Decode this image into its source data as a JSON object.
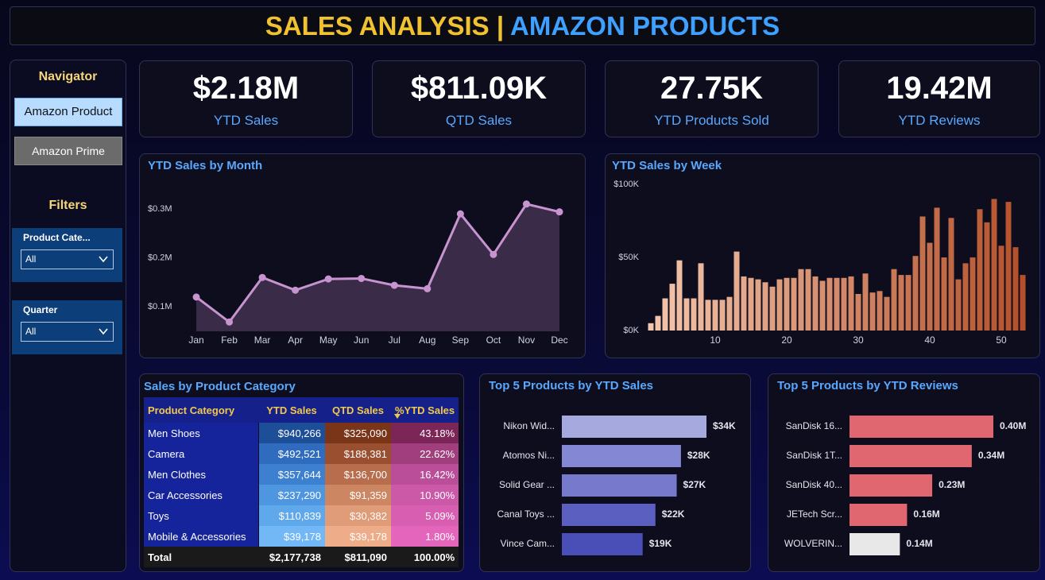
{
  "header": {
    "title_left": "SALES ANALYSIS",
    "separator": "|",
    "title_right": "AMAZON PRODUCTS"
  },
  "navigator": {
    "title": "Navigator",
    "buttons": [
      "Amazon Product",
      "Amazon Prime"
    ],
    "filters_title": "Filters",
    "filters": [
      {
        "label": "Product Cate...",
        "value": "All"
      },
      {
        "label": "Quarter",
        "value": "All"
      }
    ]
  },
  "kpis": [
    {
      "value": "$2.18M",
      "label": "YTD Sales"
    },
    {
      "value": "$811.09K",
      "label": "QTD Sales"
    },
    {
      "value": "27.75K",
      "label": "YTD Products Sold"
    },
    {
      "value": "19.42M",
      "label": "YTD Reviews"
    }
  ],
  "table": {
    "title": "Sales by Product Category",
    "columns": [
      "Product Category",
      "YTD Sales",
      "QTD Sales",
      "%YTD Sales"
    ],
    "rows": [
      [
        "Men Shoes",
        "$940,266",
        "$325,090",
        "43.18%"
      ],
      [
        "Camera",
        "$492,521",
        "$188,381",
        "22.62%"
      ],
      [
        "Men Clothes",
        "$357,644",
        "$136,700",
        "16.42%"
      ],
      [
        "Car Accessories",
        "$237,290",
        "$91,359",
        "10.90%"
      ],
      [
        "Toys",
        "$110,839",
        "$30,382",
        "5.09%"
      ],
      [
        "Mobile & Accessories",
        "$39,178",
        "$39,178",
        "1.80%"
      ]
    ],
    "total": [
      "Total",
      "$2,177,738",
      "$811,090",
      "100.00%"
    ]
  },
  "chart_data": [
    {
      "type": "area",
      "title": "YTD Sales by Month",
      "color": "#c894d0",
      "fill": "#3a2c48",
      "categories": [
        "Jan",
        "Feb",
        "Mar",
        "Apr",
        "May",
        "Jun",
        "Jul",
        "Aug",
        "Sep",
        "Oct",
        "Nov",
        "Dec"
      ],
      "values": [
        0.12,
        0.069,
        0.16,
        0.134,
        0.157,
        0.158,
        0.144,
        0.137,
        0.29,
        0.207,
        0.31,
        0.294
      ],
      "ylim": [
        0.05,
        0.36
      ],
      "yticks": [
        {
          "value": 0.1,
          "label": "$0.1M"
        },
        {
          "value": 0.2,
          "label": "$0.2M"
        },
        {
          "value": 0.3,
          "label": "$0.3M"
        }
      ]
    },
    {
      "type": "bar",
      "title": "YTD Sales by Week",
      "color_range": [
        "#f4c6ac",
        "#b4502a"
      ],
      "x": [
        1,
        2,
        3,
        4,
        5,
        6,
        7,
        8,
        9,
        10,
        11,
        12,
        13,
        14,
        15,
        16,
        17,
        18,
        19,
        20,
        21,
        22,
        23,
        24,
        25,
        26,
        27,
        28,
        29,
        30,
        31,
        32,
        33,
        34,
        35,
        36,
        37,
        38,
        39,
        40,
        41,
        42,
        43,
        44,
        45,
        46,
        47,
        48,
        49,
        50,
        51,
        52,
        53
      ],
      "values": [
        5,
        10,
        22,
        32,
        48,
        22,
        22,
        46,
        21,
        21,
        21,
        23,
        54,
        37,
        36,
        35,
        33,
        30,
        35,
        36,
        36,
        42,
        42,
        37,
        34,
        36,
        36,
        36,
        37,
        25,
        39,
        26,
        27,
        23,
        42,
        38,
        38,
        51,
        78,
        60,
        84,
        50,
        77,
        35,
        46,
        50,
        83,
        74,
        90,
        58,
        88,
        57,
        38
      ],
      "xlim": [
        0,
        54
      ],
      "xticks": [
        10,
        20,
        30,
        40,
        50
      ],
      "ylim": [
        0,
        100
      ],
      "yticks": [
        {
          "value": 0,
          "label": "$0K"
        },
        {
          "value": 50,
          "label": "$50K"
        },
        {
          "value": 100,
          "label": "$100K"
        }
      ]
    },
    {
      "type": "hbar",
      "title": "Top 5 Products by YTD Sales",
      "categories": [
        "Nikon Wid...",
        "Atomos Ni...",
        "Solid Gear ...",
        "Canal Toys ...",
        "Vince Cam..."
      ],
      "values": [
        34,
        28,
        27,
        22,
        19
      ],
      "value_labels": [
        "$34K",
        "$28K",
        "$27K",
        "$22K",
        "$19K"
      ],
      "colors": [
        "#a5a9de",
        "#8488d4",
        "#7679cc",
        "#5a5fc0",
        "#4a4fb8"
      ]
    },
    {
      "type": "hbar",
      "title": "Top 5 Products by YTD Reviews",
      "categories": [
        "SanDisk 16...",
        "SanDisk 1T...",
        "SanDisk 40...",
        "JETech Scr...",
        "WOLVERIN..."
      ],
      "values": [
        0.4,
        0.34,
        0.23,
        0.16,
        0.14
      ],
      "value_labels": [
        "0.40M",
        "0.34M",
        "0.23M",
        "0.16M",
        "0.14M"
      ],
      "colors": [
        "#e06670",
        "#e06670",
        "#e06670",
        "#e06670",
        "#e8e8e8"
      ]
    }
  ]
}
